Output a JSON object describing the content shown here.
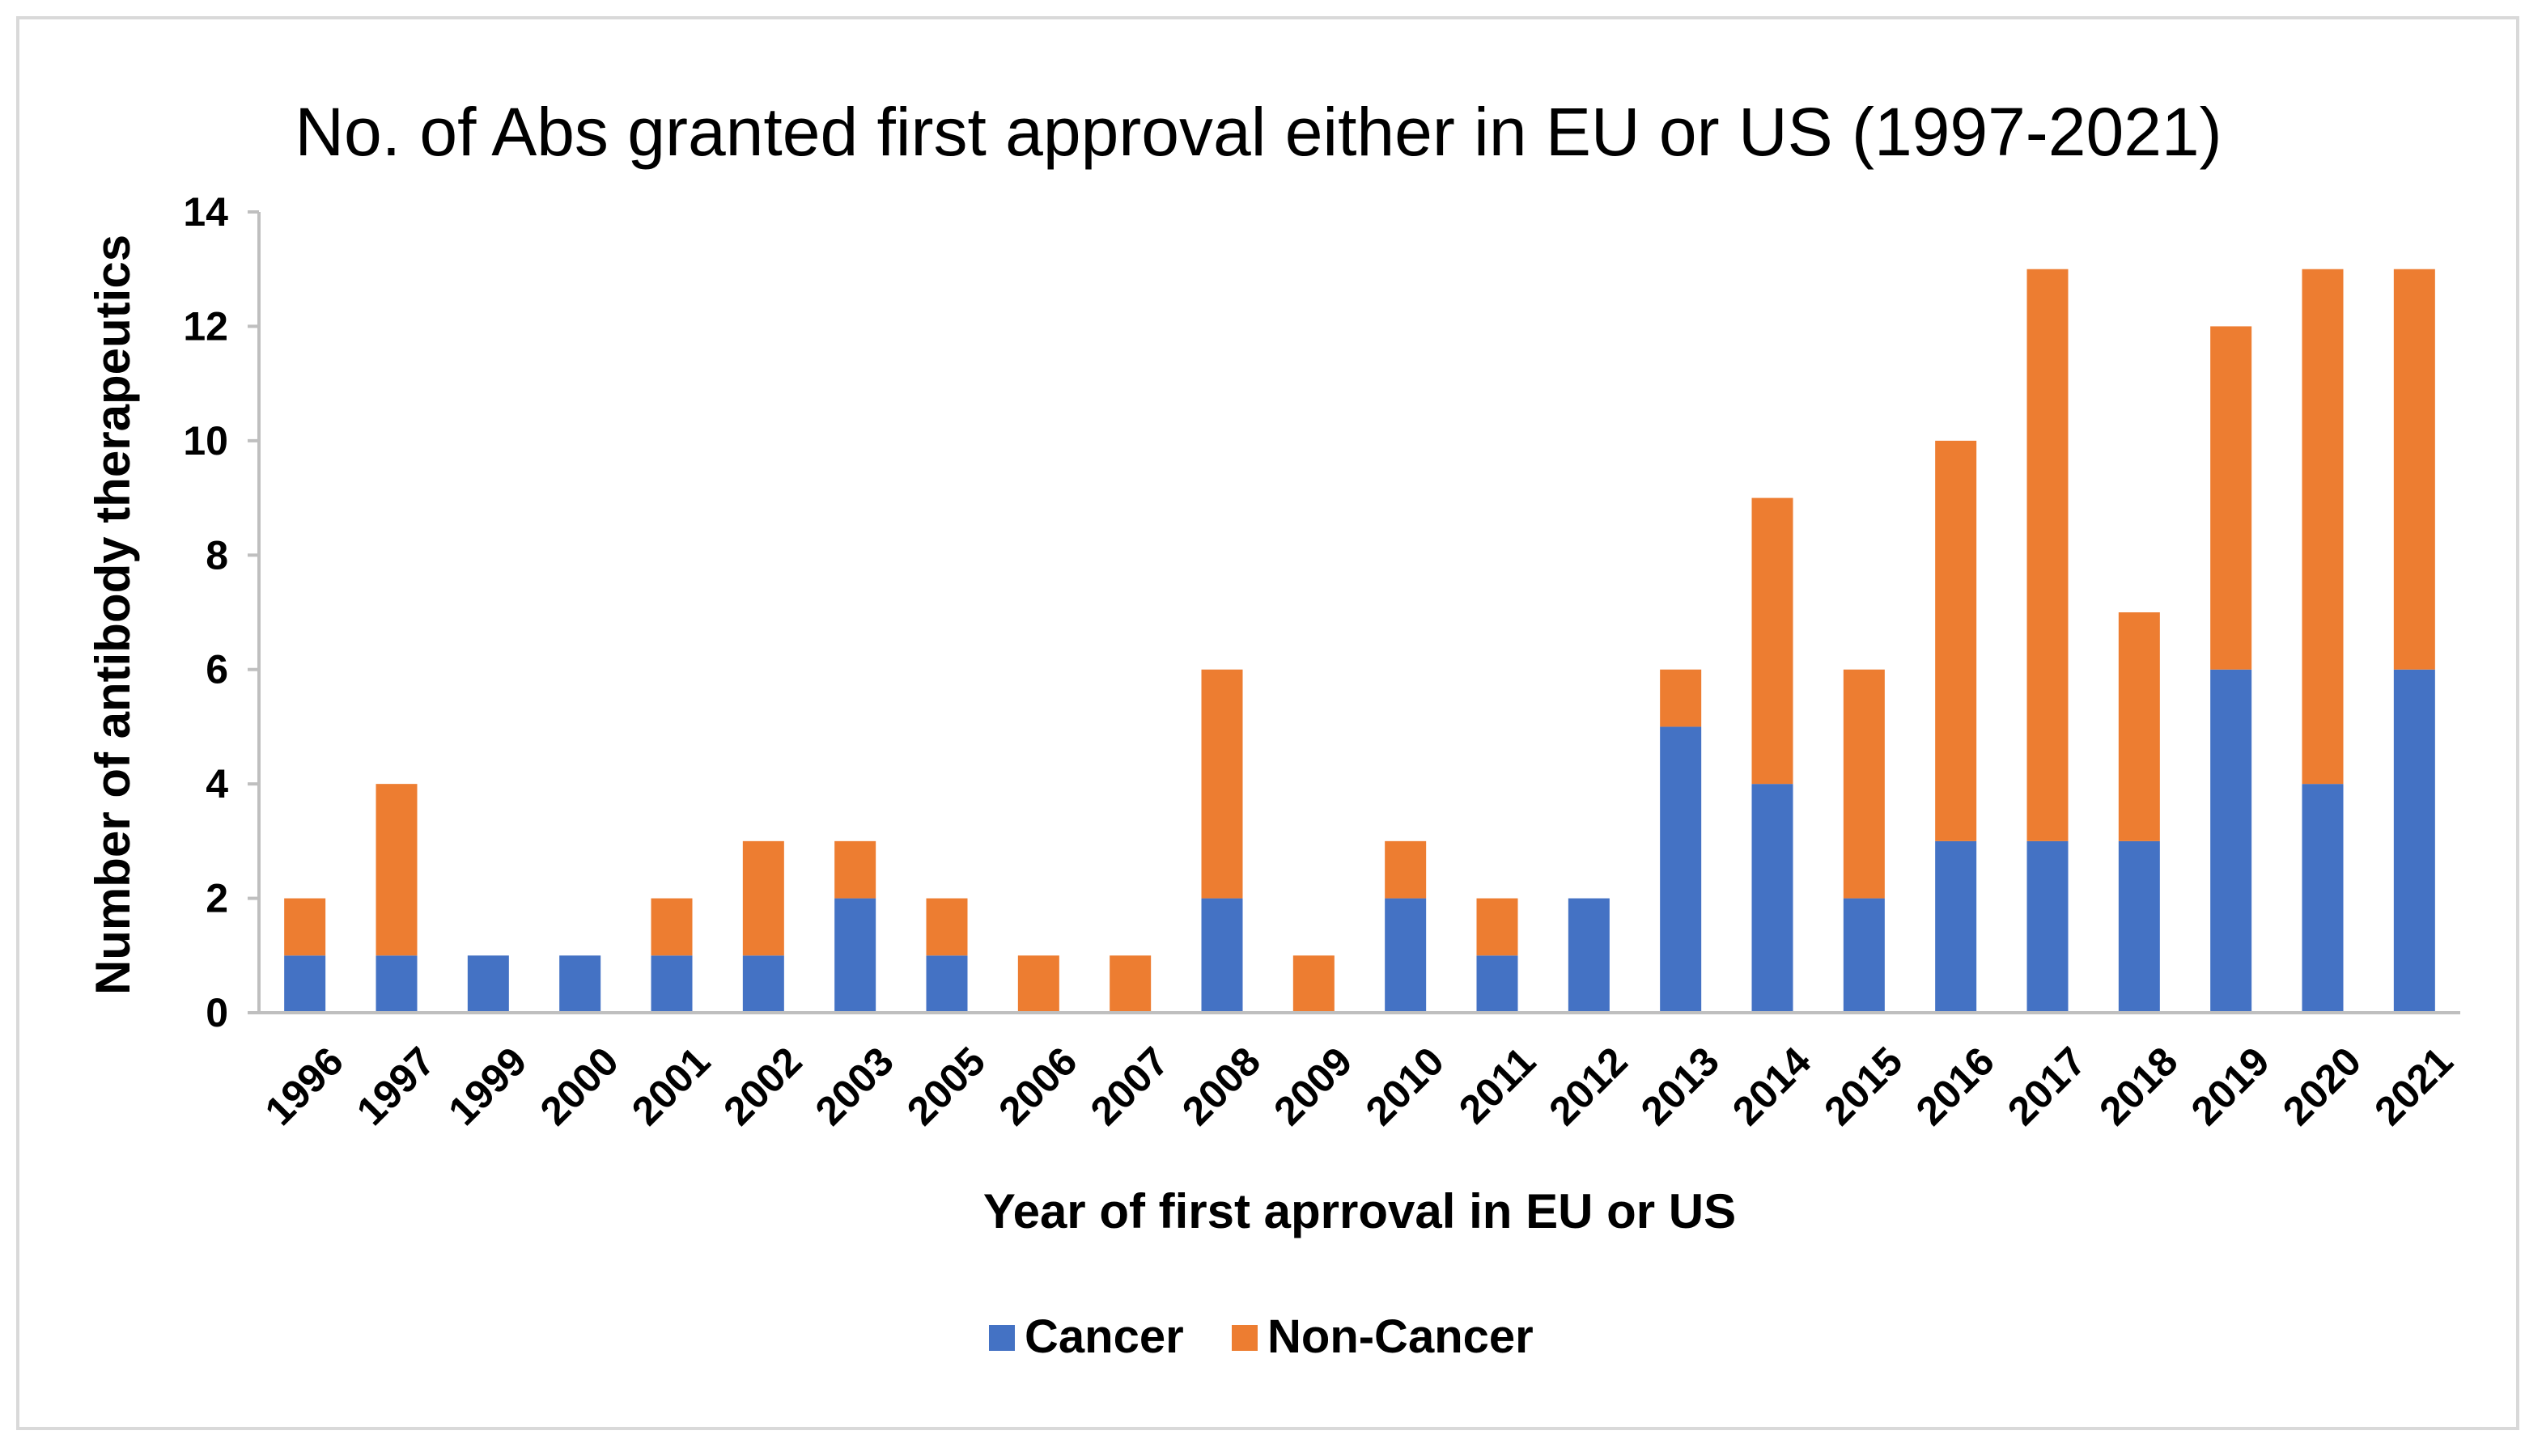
{
  "chart_data": {
    "type": "bar",
    "stacked": true,
    "title": "No. of Abs granted first approval either in EU or US (1997-2021)",
    "xlabel": "Year of first aprroval in EU or US",
    "ylabel": "Number of antibody therapeutics",
    "ylim": [
      0,
      14
    ],
    "yticks": [
      0,
      2,
      4,
      6,
      8,
      10,
      12,
      14
    ],
    "categories": [
      "1996",
      "1997",
      "1999",
      "2000",
      "2001",
      "2002",
      "2003",
      "2005",
      "2006",
      "2007",
      "2008",
      "2009",
      "2010",
      "2011",
      "2012",
      "2013",
      "2014",
      "2015",
      "2016",
      "2017",
      "2018",
      "2019",
      "2020",
      "2021"
    ],
    "series": [
      {
        "name": "Cancer",
        "color": "#4472c4",
        "values": [
          1,
          1,
          1,
          1,
          1,
          1,
          2,
          1,
          0,
          0,
          2,
          0,
          2,
          1,
          2,
          5,
          4,
          2,
          3,
          3,
          3,
          6,
          4,
          6
        ]
      },
      {
        "name": "Non-Cancer",
        "color": "#ed7d31",
        "values": [
          1,
          3,
          0,
          0,
          1,
          2,
          1,
          1,
          1,
          1,
          4,
          1,
          1,
          1,
          0,
          1,
          5,
          4,
          7,
          10,
          4,
          6,
          9,
          7
        ]
      }
    ],
    "legend_position": "bottom"
  }
}
